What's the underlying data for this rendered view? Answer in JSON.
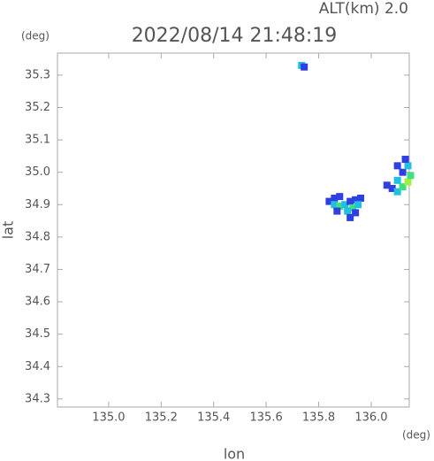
{
  "chart_data": {
    "type": "scatter",
    "altitude_label": "ALT(km) 2.0",
    "title": "2022/08/14 21:48:19",
    "y_unit": "(deg)",
    "x_unit": "(deg)",
    "xlabel": "lon",
    "ylabel": "lat",
    "xlim": [
      134.805,
      136.145
    ],
    "ylim": [
      34.275,
      35.368
    ],
    "xticks": [
      {
        "value": 135,
        "label": "135.0"
      },
      135.2,
      135.4,
      135.6,
      135.8,
      {
        "value": 136,
        "label": "136.0"
      }
    ],
    "yticks": [
      34.3,
      34.4,
      34.5,
      34.6,
      34.7,
      34.8,
      34.9,
      {
        "value": 35,
        "label": "35.0"
      },
      35.1,
      35.2,
      35.3
    ],
    "series": [
      {
        "x": [
          135.735,
          135.745,
          135.84,
          135.86,
          135.88,
          135.86,
          135.88,
          135.9,
          135.92,
          135.94,
          135.96,
          135.93,
          135.91,
          135.87,
          135.92,
          135.94,
          135.95,
          136.08,
          136.1,
          136.12,
          136.14,
          136.12,
          136.1,
          136.14,
          136.13,
          136.15,
          136.06,
          136.1
        ],
        "y": [
          35.33,
          35.325,
          34.91,
          34.92,
          34.925,
          34.9,
          34.895,
          34.9,
          34.91,
          34.915,
          34.92,
          34.89,
          34.88,
          34.88,
          34.86,
          34.875,
          34.9,
          34.95,
          34.94,
          34.955,
          34.97,
          35.0,
          35.02,
          35.02,
          35.04,
          34.99,
          34.96,
          34.975
        ],
        "colors": [
          "#20c0e0",
          "#3040e0",
          "#3040e0",
          "#3040e0",
          "#3040e0",
          "#20c0e0",
          "#40e080",
          "#20c0e0",
          "#3040e0",
          "#3040e0",
          "#3040e0",
          "#40e080",
          "#20c0e0",
          "#3040e0",
          "#3040e0",
          "#3040e0",
          "#20c0e0",
          "#3040e0",
          "#20c0e0",
          "#40e080",
          "#a0f040",
          "#3040e0",
          "#3040e0",
          "#20c0e0",
          "#3040e0",
          "#40e080",
          "#3040e0",
          "#20c0e0"
        ]
      }
    ]
  }
}
